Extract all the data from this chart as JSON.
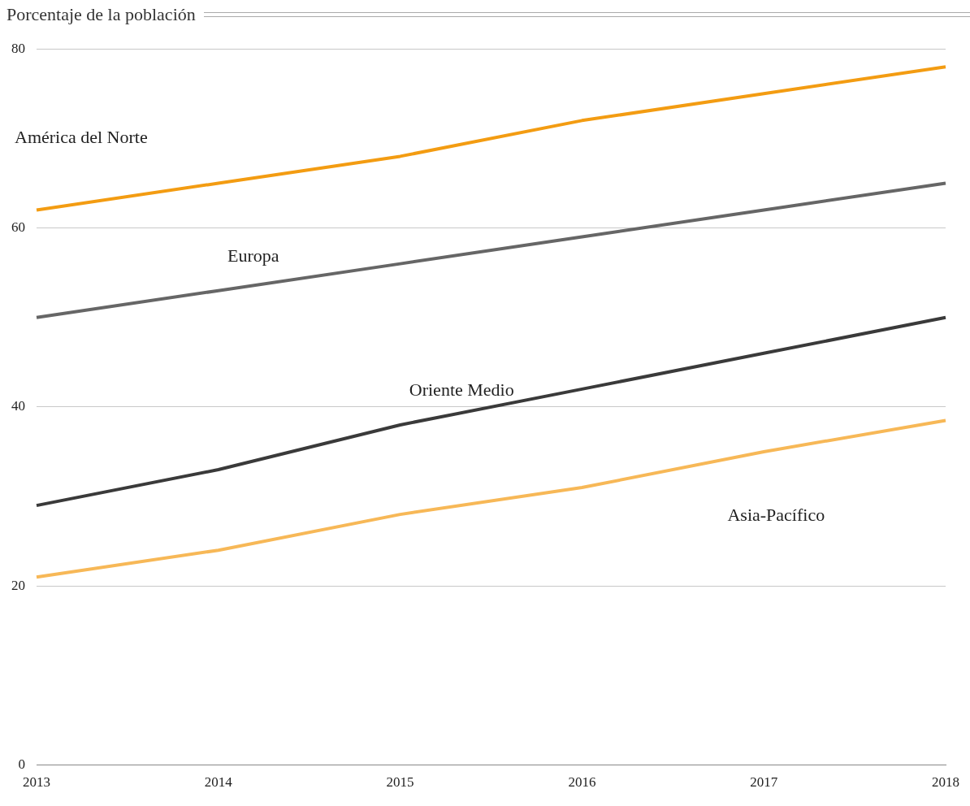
{
  "chart_data": {
    "type": "line",
    "title": "Porcentaje de la población",
    "categories": [
      "2013",
      "2014",
      "2015",
      "2016",
      "2017",
      "2018"
    ],
    "series": [
      {
        "name": "América del Norte",
        "color": "#f39c12",
        "values": [
          62,
          65,
          68,
          72,
          75,
          78
        ]
      },
      {
        "name": "Europa",
        "color": "#666666",
        "values": [
          50,
          53,
          56,
          59,
          62,
          65
        ]
      },
      {
        "name": "Oriente Medio",
        "color": "#3a3a3a",
        "values": [
          29,
          33,
          38,
          42,
          46,
          50
        ]
      },
      {
        "name": "Asia-Pacífico",
        "color": "#f7b857",
        "values": [
          21,
          24,
          28,
          31,
          35,
          38.5
        ]
      }
    ],
    "ylim": [
      0,
      80
    ],
    "yticks": [
      0,
      20,
      40,
      60,
      80
    ],
    "grid": "y",
    "legend": false,
    "marker": "none",
    "line_style": "solid"
  }
}
